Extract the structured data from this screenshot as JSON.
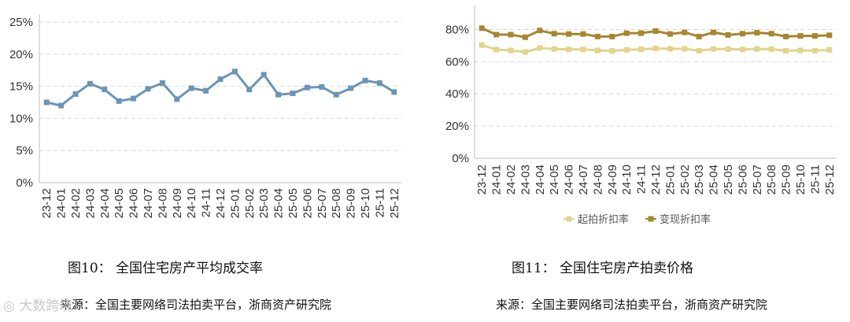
{
  "chart_data": [
    {
      "type": "line",
      "categories": [
        "23-12",
        "24-01",
        "24-02",
        "24-03",
        "24-04",
        "24-05",
        "24-06",
        "24-07",
        "24-08",
        "24-09",
        "24-10",
        "24-11",
        "24-12",
        "25-01",
        "25-02",
        "25-03",
        "25-04",
        "25-05",
        "25-06",
        "25-07",
        "25-08",
        "25-09",
        "25-10",
        "25-11",
        "25-12"
      ],
      "series": [
        {
          "values": [
            12.5,
            12.0,
            13.8,
            15.4,
            14.5,
            12.7,
            13.1,
            14.6,
            15.5,
            13.0,
            14.7,
            14.3,
            16.1,
            17.3,
            14.5,
            16.8,
            13.7,
            13.9,
            14.8,
            14.9,
            13.7,
            14.7,
            15.9,
            15.5,
            14.1
          ],
          "color": "#6b95b5"
        }
      ],
      "yticks": [
        "0%",
        "5%",
        "10%",
        "15%",
        "20%",
        "25%"
      ],
      "ylim": [
        0,
        25
      ],
      "grid": "horizontal dashed"
    },
    {
      "type": "line",
      "categories": [
        "23-12",
        "24-01",
        "24-02",
        "24-03",
        "24-04",
        "24-05",
        "24-06",
        "24-07",
        "24-08",
        "24-09",
        "24-10",
        "24-11",
        "24-12",
        "25-01",
        "25-02",
        "25-03",
        "25-04",
        "25-05",
        "25-06",
        "25-07",
        "25-08",
        "25-09",
        "25-10",
        "25-11",
        "25-12"
      ],
      "series": [
        {
          "name": "起拍折扣率",
          "values": [
            70.3,
            67.5,
            67.0,
            66.0,
            68.5,
            67.9,
            67.6,
            67.6,
            67.0,
            66.7,
            67.3,
            67.7,
            68.2,
            68.0,
            68.0,
            66.8,
            67.9,
            67.8,
            67.6,
            67.9,
            67.8,
            66.8,
            67.0,
            66.8,
            67.4
          ],
          "color": "#e2d48a"
        },
        {
          "name": "变现折扣率",
          "values": [
            80.8,
            76.8,
            76.8,
            75.2,
            79.4,
            77.4,
            77.2,
            77.2,
            75.6,
            75.6,
            77.7,
            77.7,
            79.0,
            77.2,
            78.2,
            75.6,
            78.2,
            76.6,
            77.4,
            78.0,
            77.4,
            75.6,
            76.0,
            76.0,
            76.4
          ],
          "color": "#a6862e"
        }
      ],
      "yticks": [
        "0%",
        "20%",
        "40%",
        "60%",
        "80%"
      ],
      "ylim": [
        0,
        90
      ],
      "legend": "bottom",
      "grid": "horizontal dashed"
    }
  ],
  "captions": {
    "fig10": "图10：   全国住宅房产平均成交率",
    "fig11": "图11：   全国住宅房产拍卖价格"
  },
  "sources": {
    "left": "来源：全国主要网络司法拍卖平台，浙商资产研究院",
    "right": "来源：全国主要网络司法拍卖平台，浙商资产研究院"
  },
  "watermark": "大数跨境"
}
